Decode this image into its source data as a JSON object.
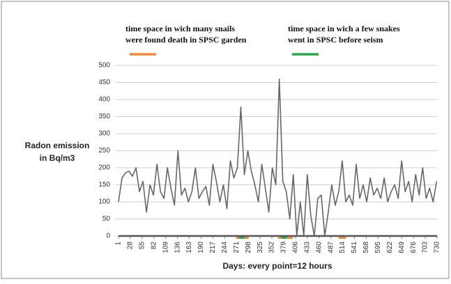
{
  "chart_data": {
    "type": "line",
    "y_label": [
      "Radon emission",
      "in Bq/m3"
    ],
    "x_label": "Days: every point=12 hours",
    "annotations": [
      {
        "lines": [
          "time space in wich many snails",
          "were found death in SPSC garden"
        ],
        "color": "#f0883a"
      },
      {
        "lines": [
          "time space in wich a few snakes",
          "went in SPSC before seism"
        ],
        "color": "#2aa84a"
      }
    ],
    "spans": [
      {
        "start": 271,
        "end": 298,
        "color": "#f0883a"
      },
      {
        "start": 276,
        "end": 290,
        "color": "#2aa84a"
      },
      {
        "start": 366,
        "end": 400,
        "color": "#f0883a"
      },
      {
        "start": 373,
        "end": 386,
        "color": "#2aa84a"
      },
      {
        "start": 505,
        "end": 522,
        "color": "#f0883a"
      }
    ],
    "series": [
      {
        "color": "#666666",
        "x": [
          1,
          9,
          17,
          25,
          33,
          41,
          49,
          57,
          65,
          73,
          81,
          89,
          97,
          105,
          113,
          121,
          129,
          137,
          145,
          153,
          161,
          169,
          177,
          185,
          193,
          201,
          209,
          217,
          225,
          233,
          241,
          249,
          257,
          265,
          273,
          281,
          289,
          297,
          305,
          313,
          321,
          329,
          337,
          345,
          353,
          361,
          369,
          377,
          385,
          393,
          401,
          409,
          417,
          425,
          433,
          441,
          449,
          457,
          465,
          473,
          481,
          489,
          497,
          505,
          513,
          521,
          529,
          537,
          545,
          553,
          561,
          569,
          577,
          585,
          593,
          601,
          609,
          617,
          625,
          633,
          641,
          649,
          657,
          665,
          673,
          681,
          689,
          697,
          705,
          713,
          721,
          729
        ],
        "values": [
          100,
          170,
          185,
          190,
          175,
          200,
          130,
          160,
          70,
          150,
          120,
          210,
          130,
          110,
          200,
          140,
          90,
          250,
          120,
          140,
          100,
          130,
          200,
          110,
          130,
          145,
          90,
          210,
          160,
          100,
          150,
          80,
          220,
          170,
          200,
          378,
          180,
          250,
          190,
          150,
          100,
          210,
          140,
          70,
          200,
          150,
          460,
          160,
          130,
          50,
          180,
          0,
          100,
          0,
          180,
          60,
          0,
          110,
          120,
          0,
          70,
          150,
          90,
          130,
          220,
          100,
          120,
          90,
          210,
          110,
          150,
          100,
          170,
          120,
          140,
          110,
          170,
          100,
          130,
          150,
          110,
          220,
          130,
          160,
          100,
          180,
          120,
          200,
          110,
          140,
          100,
          160
        ]
      }
    ],
    "xlim": [
      1,
      730
    ],
    "xticks": [
      1,
      28,
      55,
      82,
      109,
      136,
      163,
      190,
      217,
      244,
      271,
      298,
      325,
      352,
      379,
      406,
      433,
      460,
      487,
      514,
      541,
      568,
      595,
      622,
      649,
      676,
      703,
      730
    ],
    "ylim": [
      0,
      500
    ],
    "yticks": [
      0,
      50,
      100,
      150,
      200,
      250,
      300,
      350,
      400,
      450,
      500
    ],
    "grid": true
  }
}
